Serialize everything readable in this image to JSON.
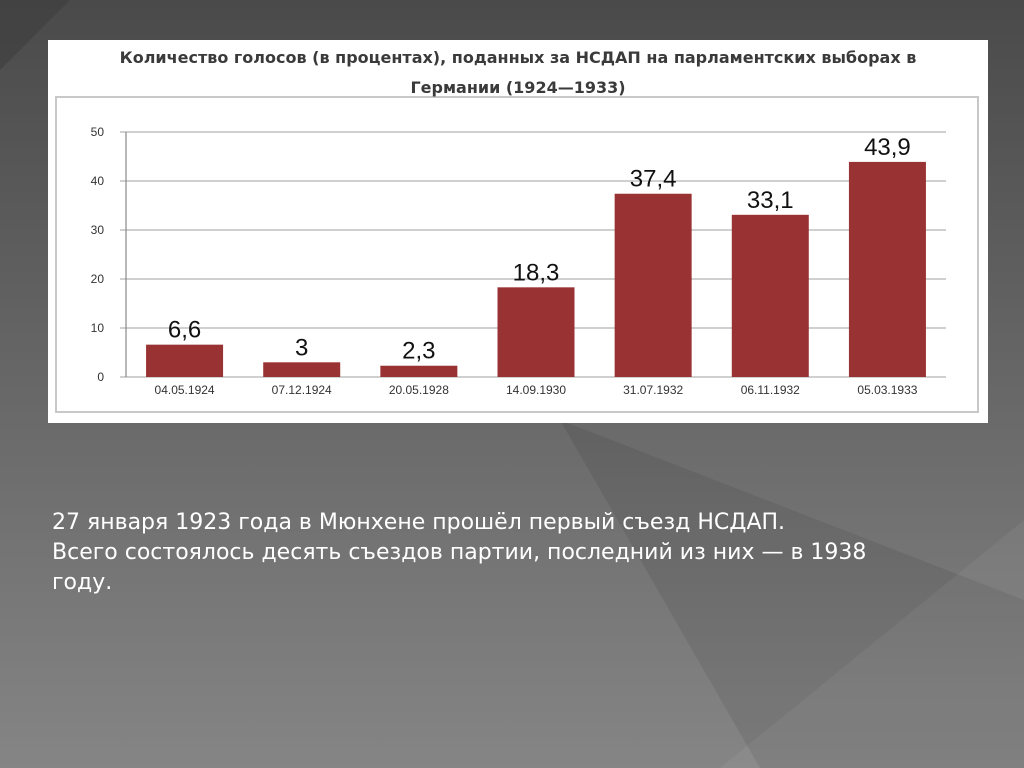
{
  "slide": {
    "caption_lines": [
      "27 января 1923 года в Мюнхене прошёл первый съезд НСДАП.",
      "Всего состоялось десять съездов партии, последний из них — в 1938",
      "году."
    ]
  },
  "chart_data": {
    "type": "bar",
    "title_lines": [
      "Количество голосов (в процентах), поданных за НСДАП на парламентских выборах в",
      "Германии (1924—1933)"
    ],
    "categories": [
      "04.05.1924",
      "07.12.1924",
      "20.05.1928",
      "14.09.1930",
      "31.07.1932",
      "06.11.1932",
      "05.03.1933"
    ],
    "values": [
      6.6,
      3,
      2.3,
      18.3,
      37.4,
      33.1,
      43.9
    ],
    "value_labels": [
      "6,6",
      "3",
      "2,3",
      "18,3",
      "37,4",
      "33,1",
      "43,9"
    ],
    "ylim": [
      0,
      50
    ],
    "yticks": [
      0,
      10,
      20,
      30,
      40,
      50
    ],
    "xlabel": "",
    "ylabel": "",
    "grid": true,
    "legend": "none",
    "bar_color": "#993333"
  }
}
